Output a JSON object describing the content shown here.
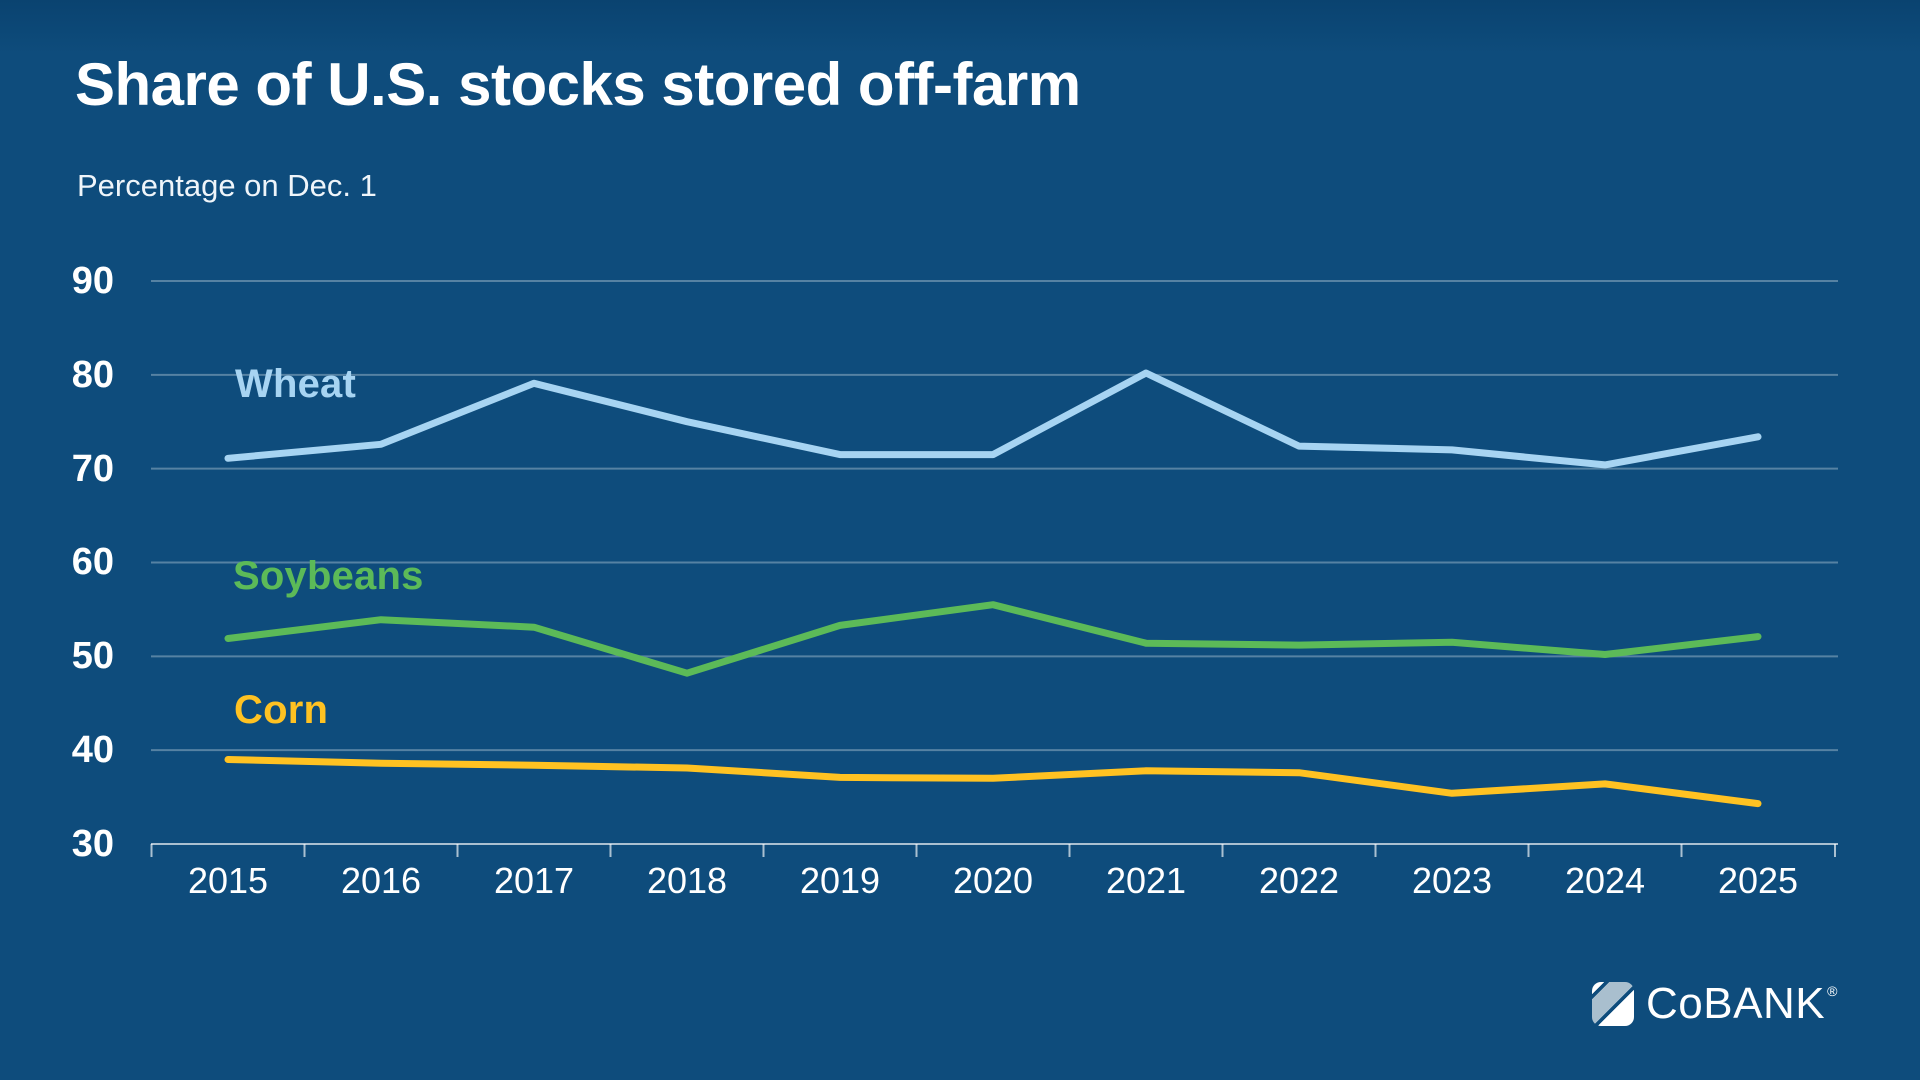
{
  "header": {
    "title": "Share of U.S. stocks stored off-farm",
    "subtitle": "Percentage on Dec. 1"
  },
  "chart_data": {
    "type": "line",
    "x": [
      2015,
      2016,
      2017,
      2018,
      2019,
      2020,
      2021,
      2022,
      2023,
      2024,
      2025
    ],
    "series": [
      {
        "name": "Wheat",
        "color": "#A7D4F2",
        "values": [
          71.1,
          72.6,
          79.1,
          75.0,
          71.5,
          71.5,
          80.2,
          72.4,
          72.0,
          70.4,
          73.4
        ]
      },
      {
        "name": "Soybeans",
        "color": "#5CBA58",
        "values": [
          51.9,
          53.9,
          53.1,
          48.2,
          53.3,
          55.5,
          51.4,
          51.2,
          51.5,
          50.2,
          52.1
        ]
      },
      {
        "name": "Corn",
        "color": "#FFC222",
        "values": [
          39.0,
          38.6,
          38.4,
          38.1,
          37.1,
          37.0,
          37.8,
          37.6,
          35.4,
          36.4,
          34.3
        ]
      }
    ],
    "ylim": [
      30,
      90
    ],
    "y_ticks": [
      30,
      40,
      50,
      60,
      70,
      80,
      90
    ],
    "grid": "horizontal",
    "legend": "inline-series-labels",
    "title": "Share of U.S. stocks stored off-farm",
    "ylabel": "Percentage on Dec. 1",
    "xlabel": ""
  },
  "colors": {
    "background": "#0E4C7C",
    "gridline": "rgba(255,255,255,0.30)",
    "axis": "rgba(255,255,255,0.65)",
    "text": "#FFFFFF"
  },
  "logo": {
    "text": "CoBANK",
    "registered": "®"
  }
}
